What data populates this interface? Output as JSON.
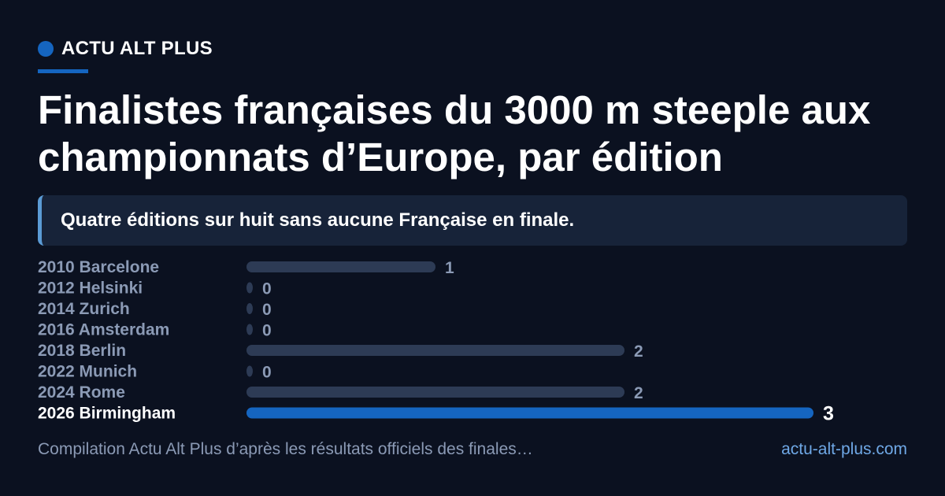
{
  "header": {
    "brand": "ACTU ALT PLUS",
    "title": "Finalistes françaises du 3000 m steeple aux championnats d’Europe, par édition",
    "callout": "Quatre éditions sur huit sans aucune Française en finale."
  },
  "chart_data": {
    "type": "bar",
    "orientation": "horizontal",
    "title": "Finalistes françaises du 3000 m steeple aux championnats d’Europe, par édition",
    "categories": [
      "2010 Barcelone",
      "2012 Helsinki",
      "2014 Zurich",
      "2016 Amsterdam",
      "2018 Berlin",
      "2022 Munich",
      "2024 Rome",
      "2026 Birmingham"
    ],
    "values": [
      1,
      0,
      0,
      0,
      2,
      0,
      2,
      3
    ],
    "highlight": "2026 Birmingham",
    "xlim": [
      0,
      3
    ],
    "grid": false,
    "legend": "none",
    "colors": {
      "bar": "#2d3b55",
      "highlight": "#1565c0",
      "label": "#8b9ab5",
      "highlight_label": "#ffffff"
    }
  },
  "footer": {
    "note": "Compilation Actu Alt Plus d’après les résultats officiels des finales…",
    "link": "actu-alt-plus.com"
  }
}
